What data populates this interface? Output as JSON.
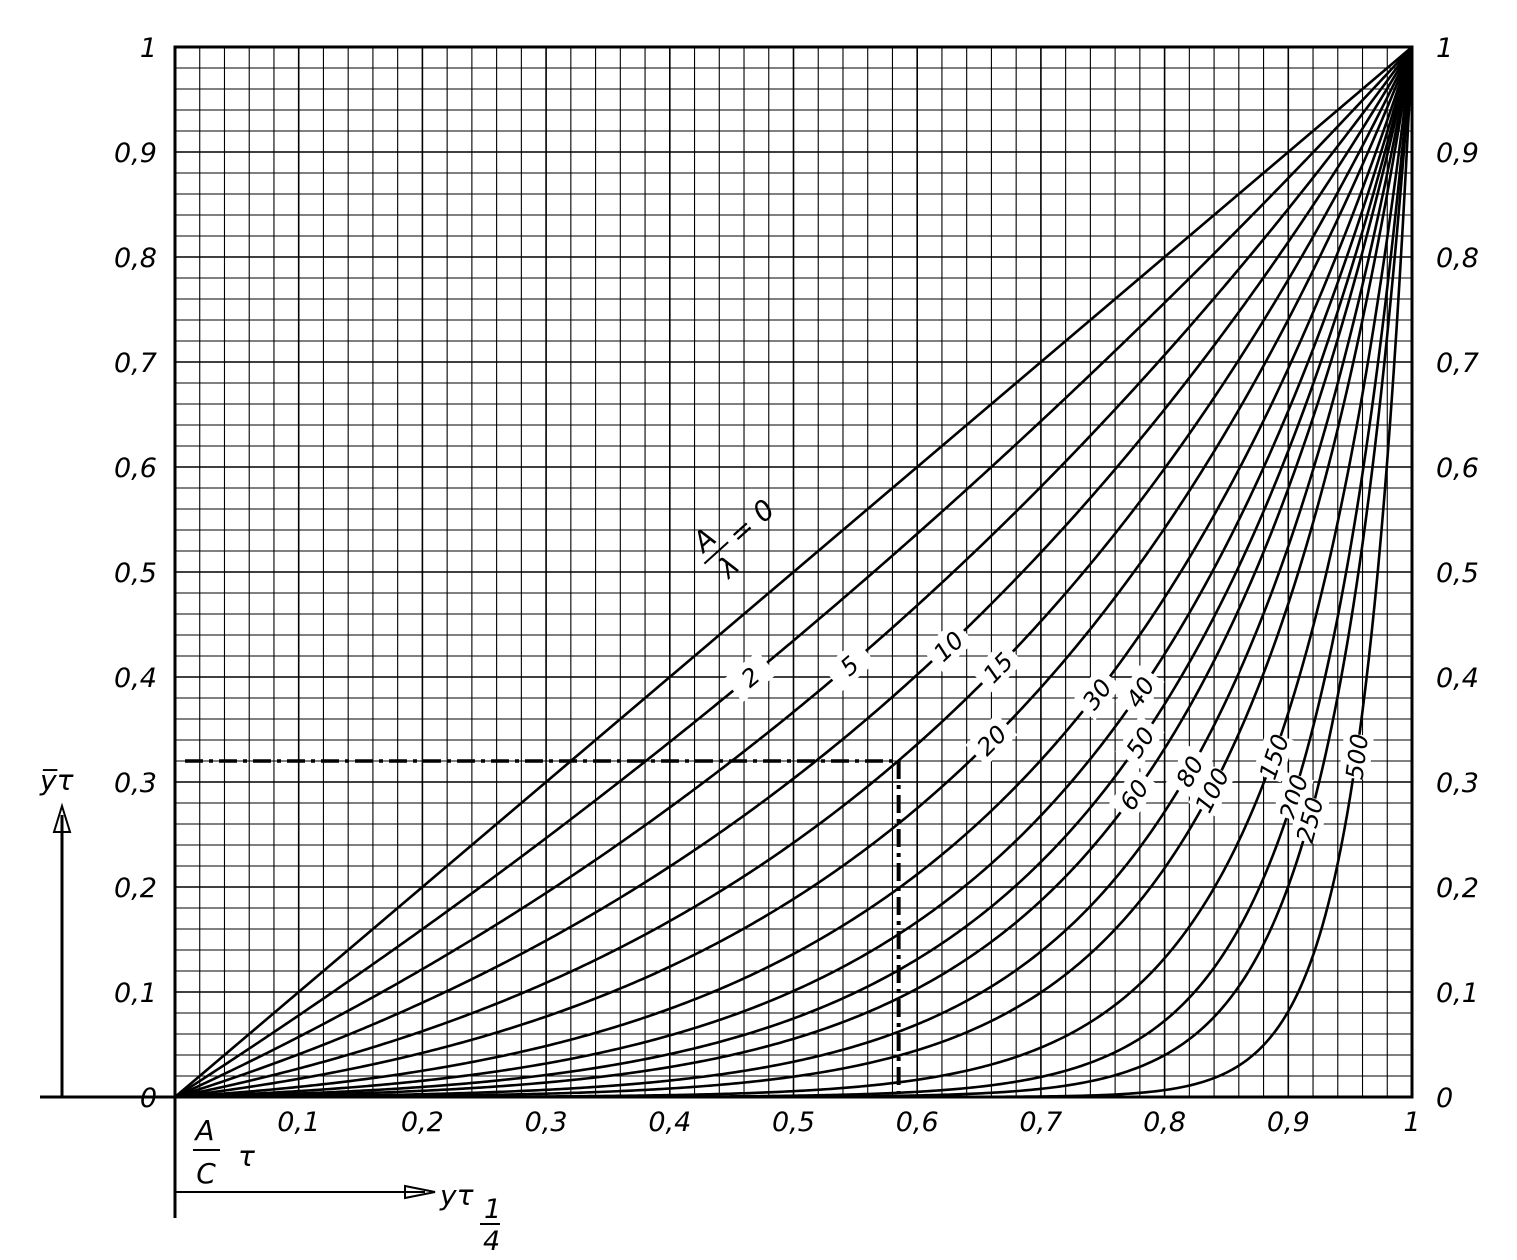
{
  "chart_data": {
    "type": "line",
    "xlim": [
      0,
      1
    ],
    "ylim": [
      0,
      1
    ],
    "grid": true,
    "xticks": [
      "0,1",
      "0,2",
      "0,3",
      "0,4",
      "0,5",
      "0,6",
      "0,7",
      "0,8",
      "0,9",
      "1"
    ],
    "yticks_left": [
      "0",
      "0,1",
      "0,2",
      "0,3",
      "0,4",
      "0,5",
      "0,6",
      "0,7",
      "0,8",
      "0,9",
      "1"
    ],
    "yticks_right": [
      "0",
      "0,1",
      "0,2",
      "0,3",
      "0,4",
      "0,5",
      "0,6",
      "0,7",
      "0,8",
      "0,9",
      "1"
    ],
    "ylabel": "y̅τ",
    "xlabel_main": "A",
    "xlabel_den": "C",
    "xlabel_tau": "τ",
    "xlabel_arrow": "yτ",
    "xlabel_frac_num": "1",
    "xlabel_frac_den": "4",
    "param_label_num": "A",
    "param_label_den": "λ",
    "param_label_eq": "= 0",
    "series": [
      {
        "name": "0",
        "k": 0
      },
      {
        "name": "2",
        "k": 0.28
      },
      {
        "name": "5",
        "k": 0.62
      },
      {
        "name": "10",
        "k": 1.0
      },
      {
        "name": "15",
        "k": 1.45
      },
      {
        "name": "20",
        "k": 1.95
      },
      {
        "name": "30",
        "k": 2.6
      },
      {
        "name": "40",
        "k": 3.2
      },
      {
        "name": "50",
        "k": 3.8
      },
      {
        "name": "60",
        "k": 4.4
      },
      {
        "name": "80",
        "k": 5.4
      },
      {
        "name": "100",
        "k": 6.5
      },
      {
        "name": "150",
        "k": 9.0
      },
      {
        "name": "200",
        "k": 12.0
      },
      {
        "name": "250",
        "k": 15.0
      },
      {
        "name": "500",
        "k": 24.0
      }
    ],
    "reference_point": {
      "x": 0.585,
      "y": 0.32
    }
  }
}
